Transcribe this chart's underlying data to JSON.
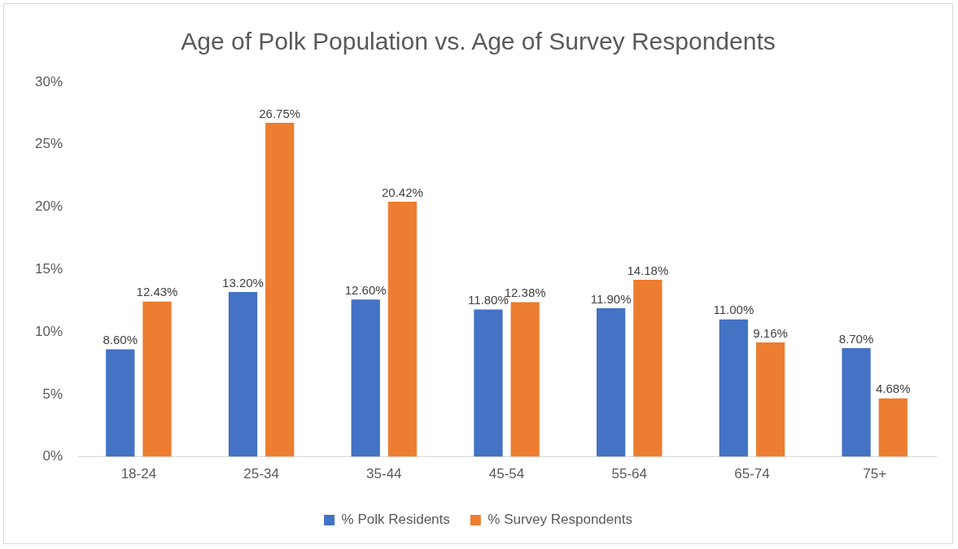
{
  "chart_data": {
    "type": "bar",
    "title": "Age of Polk Population vs. Age of Survey Respondents",
    "categories": [
      "18-24",
      "25-34",
      "35-44",
      "45-54",
      "55-64",
      "65-74",
      "75+"
    ],
    "series": [
      {
        "name": "% Polk Residents",
        "color": "#4472c4",
        "values": [
          8.6,
          13.2,
          12.6,
          11.8,
          11.9,
          11.0,
          8.7
        ],
        "value_labels": [
          "8.60%",
          "13.20%",
          "12.60%",
          "11.80%",
          "11.90%",
          "11.00%",
          "8.70%"
        ]
      },
      {
        "name": "% Survey Respondents",
        "color": "#ed7d31",
        "values": [
          12.43,
          26.75,
          20.42,
          12.38,
          14.18,
          9.16,
          4.68
        ],
        "value_labels": [
          "12.43%",
          "26.75%",
          "20.42%",
          "12.38%",
          "14.18%",
          "9.16%",
          "4.68%"
        ]
      }
    ],
    "ylim": [
      0,
      30
    ],
    "yticks": [
      {
        "value": 0,
        "label": "0%"
      },
      {
        "value": 5,
        "label": "5%"
      },
      {
        "value": 10,
        "label": "10%"
      },
      {
        "value": 15,
        "label": "15%"
      },
      {
        "value": 20,
        "label": "20%"
      },
      {
        "value": 25,
        "label": "25%"
      },
      {
        "value": 30,
        "label": "30%"
      }
    ],
    "grid": false,
    "legend": "bottom"
  }
}
